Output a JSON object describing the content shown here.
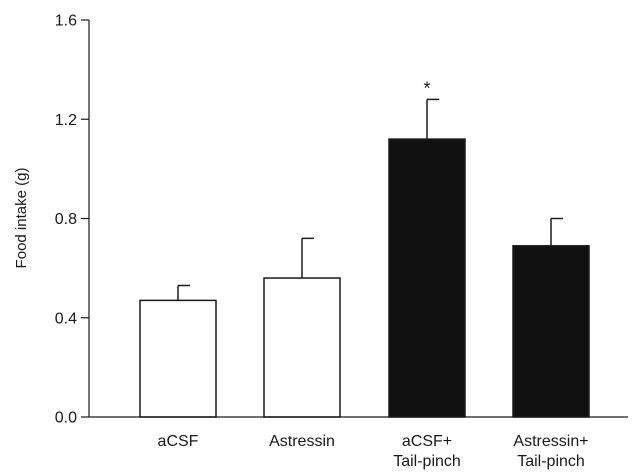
{
  "chart_data": {
    "type": "bar",
    "title": "",
    "xlabel": "",
    "ylabel": "Food intake (g)",
    "ylim": [
      0,
      1.6
    ],
    "yticks": [
      "0.0",
      "0.4",
      "0.8",
      "1.2",
      "1.6"
    ],
    "grid": false,
    "categories": [
      [
        "aCSF"
      ],
      [
        "Astressin"
      ],
      [
        "aCSF+",
        "Tail-pinch"
      ],
      [
        "Astressin+",
        "Tail-pinch"
      ]
    ],
    "values": [
      0.47,
      0.56,
      1.12,
      0.69
    ],
    "errors": [
      0.06,
      0.16,
      0.16,
      0.11
    ],
    "bar_colors": [
      "#ffffff",
      "#ffffff",
      "#111111",
      "#111111"
    ],
    "annotations": [
      "",
      "",
      "*",
      ""
    ]
  }
}
